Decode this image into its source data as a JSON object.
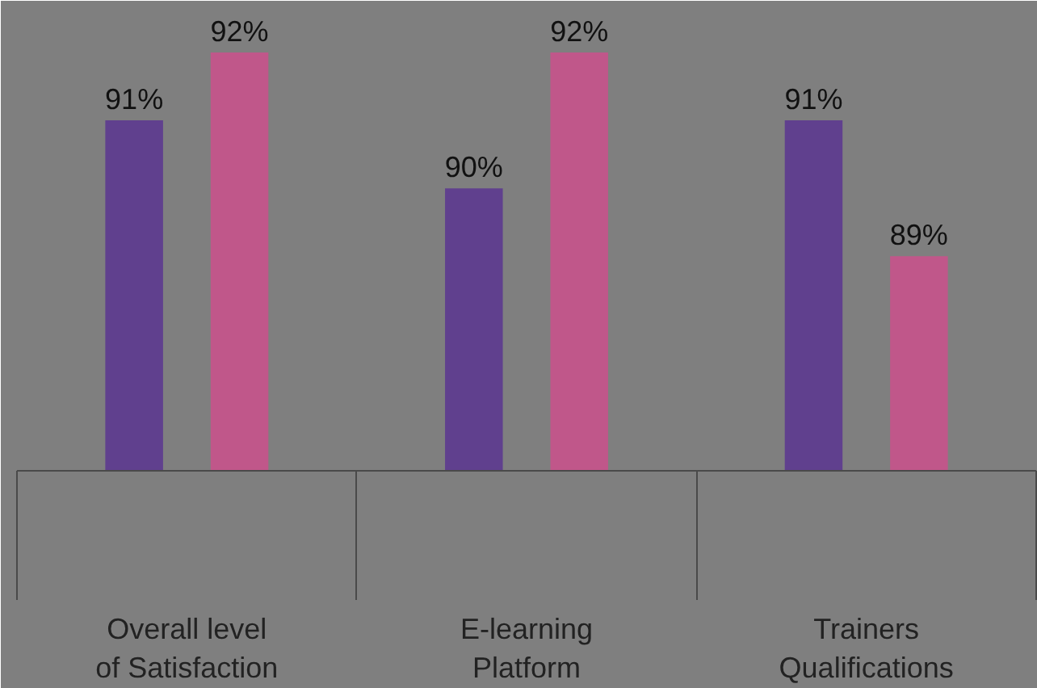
{
  "chart_data": {
    "type": "bar",
    "categories": [
      "Overall level\nof Satisfaction",
      "E-learning\nPlatform",
      "Trainers\nQualifications"
    ],
    "series": [
      {
        "color": "#60408e",
        "values": [
          91,
          90,
          91
        ],
        "value_labels": [
          "91%",
          "90%",
          "91%"
        ]
      },
      {
        "color": "#c0578a",
        "values": [
          92,
          92,
          89
        ],
        "value_labels": [
          "92%",
          "92%",
          "89%"
        ]
      }
    ],
    "ylim": [
      85.84,
      92.76
    ],
    "tick_labels": "x",
    "grid": false
  }
}
